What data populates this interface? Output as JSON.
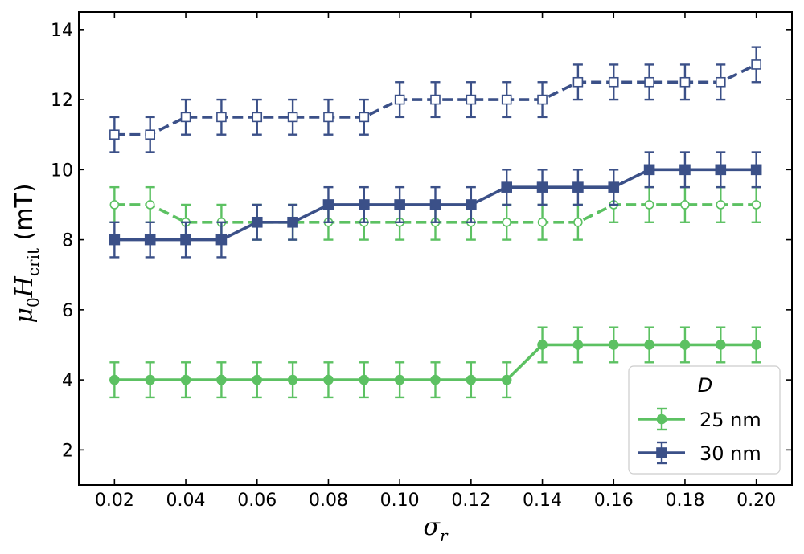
{
  "chart_data": {
    "type": "line",
    "x": [
      0.02,
      0.03,
      0.04,
      0.05,
      0.06,
      0.07,
      0.08,
      0.09,
      0.1,
      0.11,
      0.12,
      0.13,
      0.14,
      0.15,
      0.16,
      0.17,
      0.18,
      0.19,
      0.2
    ],
    "x_tick_values": [
      0.02,
      0.04,
      0.06,
      0.08,
      0.1,
      0.12,
      0.14,
      0.16,
      0.18,
      0.2
    ],
    "x_tick_labels": [
      "0.02",
      "0.04",
      "0.06",
      "0.08",
      "0.10",
      "0.12",
      "0.14",
      "0.16",
      "0.18",
      "0.20"
    ],
    "y_tick_values": [
      2,
      4,
      6,
      8,
      10,
      12,
      14
    ],
    "y_tick_labels": [
      "2",
      "4",
      "6",
      "8",
      "10",
      "12",
      "14"
    ],
    "xlim": [
      0.01,
      0.21
    ],
    "ylim": [
      1,
      14.5
    ],
    "xlabel_main": "σ",
    "xlabel_sub": "r",
    "ylabel_main": "μ",
    "ylabel_sub0": "0",
    "ylabel_H": "H",
    "ylabel_sub1": "crit",
    "ylabel_unit": " (mT)",
    "grid": false,
    "legend": {
      "title": "D",
      "position": "lower-right"
    },
    "series": [
      {
        "name": "25 nm",
        "color": "#5cc162",
        "linestyle": "solid",
        "marker": "circle",
        "filled": true,
        "in_legend": true,
        "values": [
          4,
          4,
          4,
          4,
          4,
          4,
          4,
          4,
          4,
          4,
          4,
          4,
          5,
          5,
          5,
          5,
          5,
          5,
          5
        ],
        "error": 0.5
      },
      {
        "name": "30 nm",
        "color": "#3b5088",
        "linestyle": "solid",
        "marker": "square",
        "filled": true,
        "in_legend": true,
        "values": [
          8,
          8,
          8,
          8,
          8.5,
          8.5,
          9,
          9,
          9,
          9,
          9,
          9.5,
          9.5,
          9.5,
          9.5,
          10,
          10,
          10,
          10
        ],
        "error": 0.5
      },
      {
        "color": "#5cc162",
        "linestyle": "dashed",
        "marker": "circle",
        "filled": false,
        "in_legend": false,
        "values": [
          9,
          9,
          8.5,
          8.5,
          8.5,
          8.5,
          8.5,
          8.5,
          8.5,
          8.5,
          8.5,
          8.5,
          8.5,
          8.5,
          9,
          9,
          9,
          9,
          9
        ],
        "error": 0.5
      },
      {
        "color": "#3b5088",
        "linestyle": "dashed",
        "marker": "square",
        "filled": false,
        "in_legend": false,
        "values": [
          11,
          11,
          11.5,
          11.5,
          11.5,
          11.5,
          11.5,
          11.5,
          12,
          12,
          12,
          12,
          12,
          12.5,
          12.5,
          12.5,
          12.5,
          12.5,
          13
        ],
        "error": 0.5
      }
    ]
  }
}
